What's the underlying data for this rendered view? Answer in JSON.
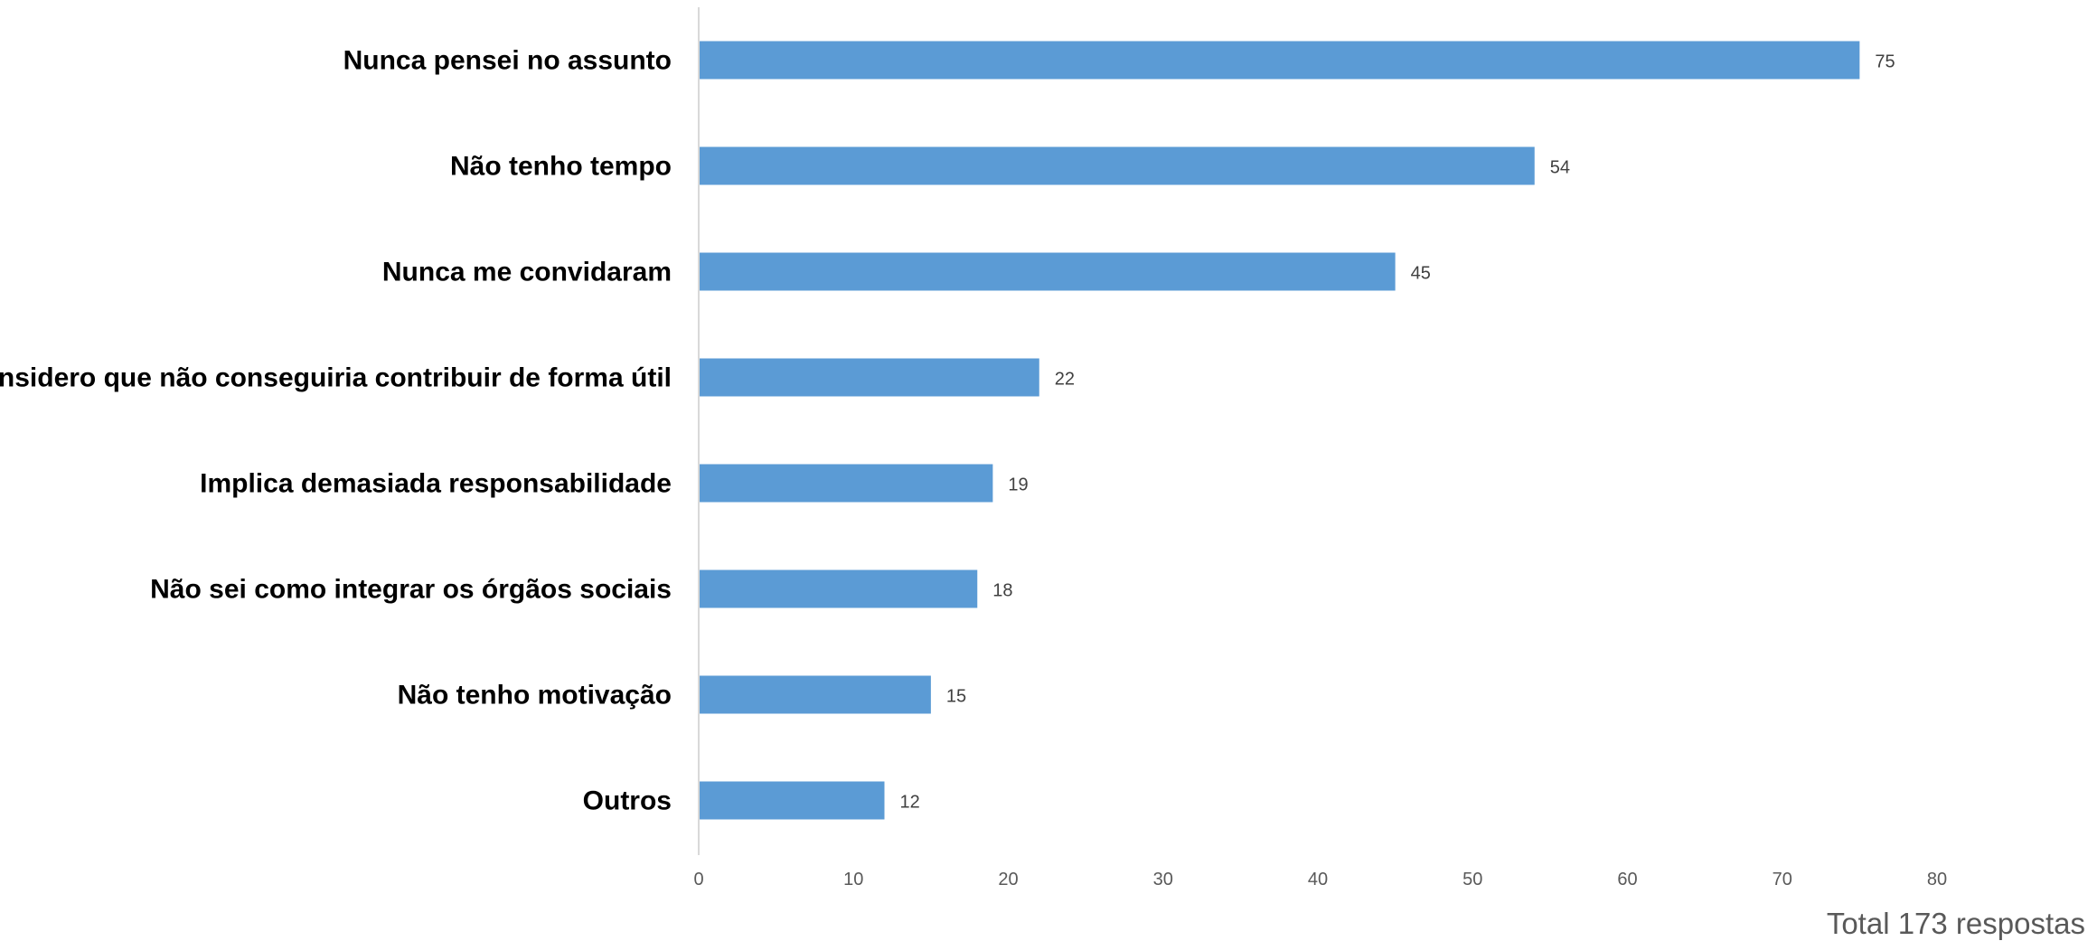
{
  "chart_data": {
    "type": "bar",
    "orientation": "horizontal",
    "categories": [
      "Nunca pensei no assunto",
      "Não tenho tempo",
      "Nunca me convidaram",
      "Considero que não conseguiria contribuir de forma útil",
      "Implica demasiada responsabilidade",
      "Não sei como integrar os órgãos sociais",
      "Não tenho motivação",
      "Outros"
    ],
    "values": [
      75,
      54,
      45,
      22,
      19,
      18,
      15,
      12
    ],
    "xlim": [
      0,
      80
    ],
    "xticks": [
      0,
      10,
      20,
      30,
      40,
      50,
      60,
      70,
      80
    ],
    "grid": false,
    "data_labels": true,
    "bar_color": "#5B9BD5"
  },
  "footer": {
    "total_text": "Total 173 respostas"
  }
}
